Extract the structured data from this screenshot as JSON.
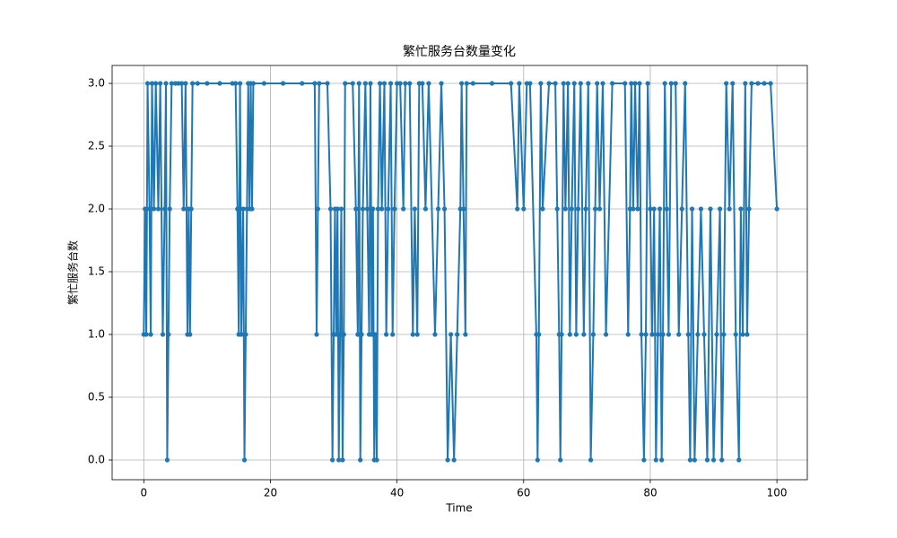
{
  "chart_data": {
    "type": "line",
    "title": "繁忙服务台数量变化",
    "x_label": "Time",
    "y_label": "繁忙服务台数",
    "xlim": [
      -5,
      104.8
    ],
    "ylim": [
      -0.157,
      3.143
    ],
    "xticks": [
      0,
      20,
      40,
      60,
      80,
      100
    ],
    "yticks": [
      {
        "value": 0,
        "label": "0.0"
      },
      0.5,
      {
        "value": 1,
        "label": "1.0"
      },
      1.5,
      {
        "value": 2,
        "label": "2.0"
      },
      2.5,
      {
        "value": 3,
        "label": "3.0"
      }
    ],
    "grid": true,
    "marker": "circle",
    "x": [
      0,
      0.2,
      0.4,
      0.6,
      0.9,
      1.1,
      1.3,
      1.6,
      1.9,
      2.3,
      2.6,
      3.0,
      3.3,
      3.5,
      3.7,
      3.9,
      4.1,
      4.4,
      5.0,
      5.5,
      6.0,
      6.3,
      6.6,
      6.9,
      7.1,
      7.3,
      7.5,
      7.7,
      8.5,
      10,
      12,
      14,
      14.5,
      14.8,
      15.0,
      15.2,
      15.4,
      15.7,
      15.9,
      16.1,
      16.3,
      16.5,
      16.7,
      16.9,
      17.1,
      17.3,
      19,
      22,
      25,
      27,
      27.3,
      27.5,
      27.7,
      29,
      29.5,
      29.8,
      30,
      30.2,
      30.4,
      30.6,
      30.8,
      31,
      31.2,
      31.4,
      31.6,
      31.8,
      33,
      33.5,
      33.8,
      34,
      34.2,
      34.4,
      34.6,
      35,
      35.3,
      35.6,
      35.8,
      36,
      36.2,
      36.4,
      36.6,
      36.8,
      37,
      37.3,
      37.6,
      38,
      38.3,
      38.6,
      39,
      39.3,
      39.6,
      40,
      40.5,
      41,
      41.3,
      42,
      42.5,
      42.8,
      43.2,
      43.5,
      44,
      44.5,
      45,
      46,
      46.5,
      47,
      47.5,
      48,
      48.5,
      49,
      49.5,
      50,
      50.2,
      50.5,
      50.8,
      51,
      52,
      55,
      58,
      59,
      59.3,
      60,
      60.5,
      61,
      62,
      62.2,
      62.4,
      62.7,
      63,
      64,
      65,
      65.3,
      65.6,
      65.8,
      66,
      66.3,
      66.6,
      67,
      67.3,
      67.6,
      68,
      68.3,
      68.6,
      69,
      69.5,
      69.8,
      70.2,
      70.6,
      71,
      71.3,
      71.6,
      72,
      72.5,
      73,
      74,
      76,
      76.5,
      76.8,
      77,
      77.3,
      77.6,
      78,
      78.3,
      78.6,
      79,
      79.3,
      79.6,
      80,
      80.3,
      80.6,
      80.9,
      81.2,
      81.5,
      81.8,
      82,
      82.3,
      82.6,
      82.9,
      83.3,
      84,
      84.5,
      85,
      85.5,
      86,
      86.3,
      86.6,
      87,
      87.5,
      88,
      88.5,
      89,
      89.5,
      90,
      90.5,
      91,
      91.3,
      91.6,
      92,
      92.5,
      93,
      93.5,
      94,
      94.3,
      94.6,
      95,
      95.3,
      95.6,
      96,
      97,
      98,
      99,
      100
    ],
    "series": [
      {
        "name": "繁忙服务台数",
        "color": "#1f77b4",
        "values": [
          1,
          2,
          1,
          3,
          2,
          1,
          3,
          2,
          3,
          2,
          3,
          1,
          2,
          3,
          0,
          1,
          2,
          3,
          3,
          3,
          3,
          2,
          3,
          1,
          2,
          1,
          2,
          3,
          3,
          3,
          3,
          3,
          3,
          2,
          1,
          3,
          1,
          2,
          0,
          1,
          2,
          3,
          2,
          3,
          2,
          3,
          3,
          3,
          3,
          3,
          1,
          2,
          3,
          3,
          2,
          0,
          1,
          2,
          1,
          2,
          0,
          1,
          2,
          0,
          1,
          3,
          3,
          2,
          1,
          3,
          0,
          1,
          2,
          3,
          2,
          1,
          3,
          1,
          2,
          0,
          1,
          0,
          2,
          3,
          2,
          3,
          1,
          2,
          3,
          1,
          2,
          3,
          3,
          2,
          3,
          3,
          1,
          2,
          1,
          3,
          3,
          2,
          3,
          1,
          2,
          3,
          2,
          0,
          1,
          0,
          1,
          2,
          3,
          2,
          1,
          3,
          3,
          3,
          3,
          2,
          3,
          2,
          3,
          3,
          1,
          0,
          1,
          3,
          2,
          3,
          3,
          2,
          1,
          0,
          1,
          3,
          2,
          3,
          1,
          2,
          3,
          1,
          2,
          3,
          1,
          2,
          3,
          0,
          1,
          2,
          3,
          2,
          3,
          1,
          3,
          3,
          1,
          2,
          3,
          2,
          3,
          2,
          3,
          1,
          0,
          1,
          3,
          2,
          1,
          2,
          0,
          1,
          2,
          0,
          1,
          3,
          2,
          1,
          3,
          3,
          1,
          2,
          3,
          1,
          0,
          2,
          0,
          1,
          2,
          1,
          0,
          2,
          0,
          1,
          2,
          0,
          1,
          3,
          2,
          3,
          1,
          0,
          2,
          1,
          3,
          1,
          2,
          3,
          3,
          3,
          3,
          2
        ]
      }
    ]
  }
}
